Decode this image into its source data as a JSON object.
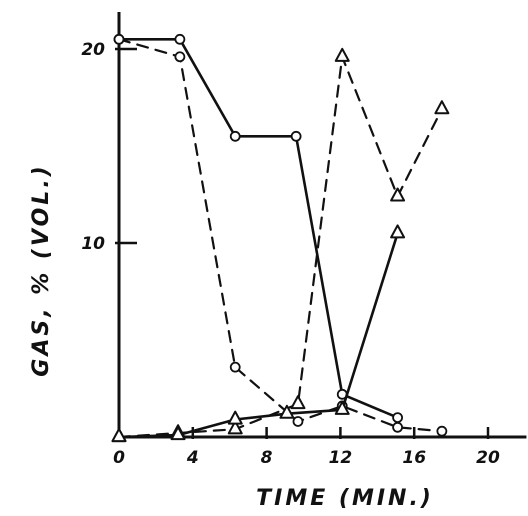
{
  "chart_data": {
    "type": "line",
    "title": "",
    "xlabel": "TIME (MIN.)",
    "ylabel": "GAS, % (VOL.)",
    "xlim": [
      0,
      21
    ],
    "ylim": [
      0,
      21
    ],
    "x_ticks": [
      {
        "value": 0,
        "label": "0"
      },
      {
        "value": 4,
        "label": "4"
      },
      {
        "value": 8,
        "label": "8"
      },
      {
        "value": 12,
        "label": "12"
      },
      {
        "value": 16,
        "label": "16"
      },
      {
        "value": 20,
        "label": "20"
      }
    ],
    "y_ticks": [
      {
        "value": 10,
        "label": "10"
      },
      {
        "value": 20,
        "label": "20"
      }
    ],
    "grid": false,
    "legend": false,
    "series": [
      {
        "style": "solid",
        "marker": "circle",
        "points": [
          [
            0,
            20.5
          ],
          [
            3.3,
            20.5
          ],
          [
            6.3,
            15.5
          ],
          [
            9.6,
            15.5
          ],
          [
            12.1,
            2.2
          ],
          [
            15.1,
            1.0
          ]
        ]
      },
      {
        "style": "dashed",
        "marker": "circle",
        "points": [
          [
            0,
            20.5
          ],
          [
            3.3,
            19.6
          ],
          [
            6.3,
            3.6
          ],
          [
            9.7,
            0.8
          ],
          [
            12.1,
            1.6
          ],
          [
            15.1,
            0.5
          ],
          [
            17.5,
            0.3
          ]
        ]
      },
      {
        "style": "dashed",
        "marker": "triangle",
        "points": [
          [
            0,
            0
          ],
          [
            3.2,
            0.2
          ],
          [
            6.3,
            0.4
          ],
          [
            9.7,
            1.7
          ],
          [
            12.1,
            19.6
          ],
          [
            15.1,
            12.4
          ],
          [
            17.5,
            16.9
          ]
        ]
      },
      {
        "style": "solid",
        "marker": "triangle",
        "points": [
          [
            0,
            0
          ],
          [
            3.2,
            0.1
          ],
          [
            6.3,
            0.9
          ],
          [
            9.1,
            1.2
          ],
          [
            12.1,
            1.4
          ],
          [
            15.1,
            10.5
          ]
        ]
      }
    ]
  }
}
